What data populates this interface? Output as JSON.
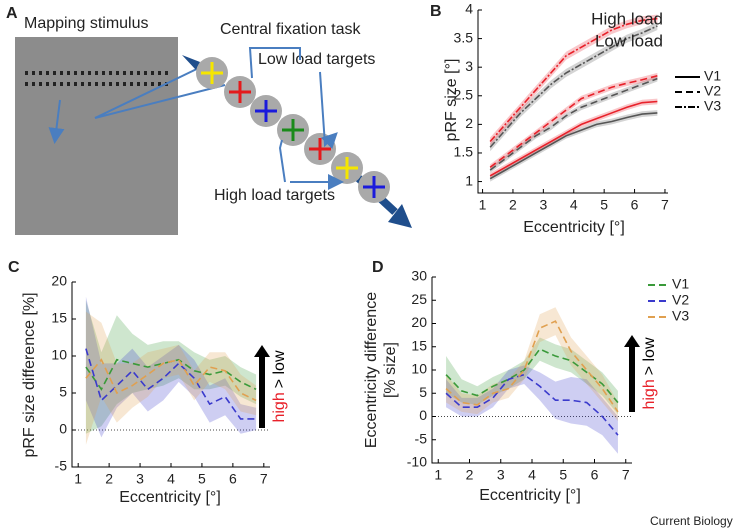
{
  "panel_a": {
    "letter": "A",
    "stimulus_label": "Mapping stimulus",
    "task_label": "Central fixation task",
    "low_label": "Low load targets",
    "high_label": "High load targets"
  },
  "footer": "Current Biology",
  "chart_data": [
    {
      "type": "line",
      "panel": "B",
      "xlabel": "Eccentricity [°]",
      "ylabel": "pRF size [°]",
      "x": [
        1.25,
        1.75,
        2.25,
        2.75,
        3.25,
        3.75,
        4.25,
        4.75,
        5.25,
        5.75,
        6.25,
        6.75
      ],
      "xlim": [
        0.85,
        7.1
      ],
      "ylim": [
        0.8,
        4
      ],
      "xticks": [
        1,
        2,
        3,
        4,
        5,
        6,
        7
      ],
      "yticks": [
        1,
        1.5,
        2,
        2.5,
        3,
        3.5,
        4
      ],
      "legend_colors": [
        {
          "name": "High load",
          "color": "#e8212a"
        },
        {
          "name": "Low load",
          "color": "#000000"
        }
      ],
      "legend_styles": [
        {
          "name": "V1",
          "dash": "solid"
        },
        {
          "name": "V2",
          "dash": "dashed"
        },
        {
          "name": "V3",
          "dash": "dash-dot"
        }
      ],
      "series": [
        {
          "color": "#555555",
          "dash": "solid",
          "values": [
            1.05,
            1.2,
            1.35,
            1.5,
            1.65,
            1.8,
            1.9,
            2.0,
            2.05,
            2.12,
            2.18,
            2.2
          ],
          "error": [
            0.05,
            0.05,
            0.05,
            0.05,
            0.05,
            0.05,
            0.05,
            0.05,
            0.05,
            0.05,
            0.05,
            0.05
          ]
        },
        {
          "color": "#e8212a",
          "dash": "solid",
          "values": [
            1.1,
            1.25,
            1.4,
            1.55,
            1.7,
            1.85,
            2.0,
            2.1,
            2.2,
            2.3,
            2.38,
            2.4
          ],
          "error": [
            0.05,
            0.05,
            0.05,
            0.05,
            0.05,
            0.05,
            0.05,
            0.05,
            0.05,
            0.05,
            0.05,
            0.05
          ]
        },
        {
          "color": "#555555",
          "dash": "dashed",
          "values": [
            1.2,
            1.4,
            1.6,
            1.8,
            1.95,
            2.15,
            2.3,
            2.4,
            2.5,
            2.6,
            2.7,
            2.8
          ],
          "error": [
            0.05,
            0.05,
            0.05,
            0.05,
            0.05,
            0.05,
            0.05,
            0.05,
            0.05,
            0.05,
            0.05,
            0.05
          ]
        },
        {
          "color": "#e8212a",
          "dash": "dashed",
          "values": [
            1.25,
            1.45,
            1.65,
            1.85,
            2.05,
            2.25,
            2.45,
            2.55,
            2.65,
            2.72,
            2.78,
            2.85
          ],
          "error": [
            0.05,
            0.05,
            0.05,
            0.05,
            0.05,
            0.05,
            0.05,
            0.05,
            0.05,
            0.05,
            0.05,
            0.05
          ]
        },
        {
          "color": "#555555",
          "dash": "dash-dot",
          "values": [
            1.6,
            1.9,
            2.2,
            2.45,
            2.7,
            2.9,
            3.05,
            3.2,
            3.35,
            3.5,
            3.6,
            3.72
          ],
          "error": [
            0.07,
            0.07,
            0.07,
            0.07,
            0.07,
            0.07,
            0.07,
            0.07,
            0.07,
            0.07,
            0.07,
            0.07
          ]
        },
        {
          "color": "#e8212a",
          "dash": "dash-dot",
          "values": [
            1.7,
            2.0,
            2.3,
            2.6,
            2.9,
            3.2,
            3.35,
            3.5,
            3.65,
            3.75,
            3.82,
            3.85
          ],
          "error": [
            0.07,
            0.07,
            0.07,
            0.07,
            0.07,
            0.07,
            0.07,
            0.07,
            0.07,
            0.07,
            0.07,
            0.07
          ]
        }
      ]
    },
    {
      "type": "line",
      "panel": "C",
      "xlabel": "Eccentricity [°]",
      "ylabel": "pRF size difference [%]",
      "annotation": [
        "high",
        "> low"
      ],
      "x": [
        1.25,
        1.75,
        2.25,
        2.75,
        3.25,
        3.75,
        4.25,
        4.75,
        5.25,
        5.75,
        6.25,
        6.75
      ],
      "xlim": [
        0.8,
        7.2
      ],
      "ylim": [
        -5,
        20
      ],
      "xticks": [
        1,
        2,
        3,
        4,
        5,
        6,
        7
      ],
      "yticks": [
        -5,
        0,
        5,
        10,
        15,
        20
      ],
      "series": [
        {
          "color": "#3a9a3a",
          "dash": "dashed",
          "values": [
            8.5,
            5.5,
            9.5,
            9,
            8.5,
            9,
            9.5,
            8,
            7.5,
            8,
            6.5,
            5.5
          ],
          "error": [
            9,
            5,
            6,
            4,
            3,
            3,
            2.5,
            2.5,
            2,
            2,
            2,
            2
          ]
        },
        {
          "color": "#3a3acc",
          "dash": "dashed",
          "values": [
            11,
            4,
            6,
            8,
            5.5,
            7,
            9,
            7,
            3.5,
            4.5,
            1.5,
            1.5
          ],
          "error": [
            7,
            5,
            3,
            3,
            3,
            3,
            2.5,
            2.5,
            2.5,
            2.5,
            2,
            1.5
          ]
        },
        {
          "color": "#e0a050",
          "dash": "dashed",
          "values": [
            7,
            9.5,
            5,
            6,
            7.5,
            9,
            9.5,
            6,
            8.5,
            8,
            5,
            4
          ],
          "error": [
            9,
            5,
            4,
            3,
            3,
            2,
            2,
            2,
            2,
            2.5,
            2.5,
            2
          ]
        }
      ]
    },
    {
      "type": "line",
      "panel": "D",
      "xlabel": "Eccentricity [°]",
      "ylabel": [
        "Eccentricity difference",
        "[% size]"
      ],
      "annotation": [
        "high",
        "> low"
      ],
      "x": [
        1.25,
        1.75,
        2.25,
        2.75,
        3.25,
        3.75,
        4.25,
        4.75,
        5.25,
        5.75,
        6.25,
        6.75
      ],
      "xlim": [
        0.8,
        7.2
      ],
      "ylim": [
        -10,
        30
      ],
      "xticks": [
        1,
        2,
        3,
        4,
        5,
        6,
        7
      ],
      "yticks": [
        -10,
        -5,
        0,
        5,
        10,
        15,
        20,
        25,
        30
      ],
      "series": [
        {
          "name": "V1",
          "color": "#3a9a3a",
          "dash": "dashed",
          "values": [
            9,
            5.5,
            4.5,
            6.5,
            8,
            10,
            14.5,
            13,
            12,
            9.5,
            7,
            3
          ],
          "error": [
            4,
            2.5,
            2,
            2,
            2,
            2,
            2.5,
            2.5,
            2.5,
            2.5,
            2.5,
            2.5
          ]
        },
        {
          "name": "V2",
          "color": "#3a3acc",
          "dash": "dashed",
          "values": [
            5,
            2,
            2,
            4,
            8,
            9,
            6.5,
            3.5,
            3.5,
            3,
            0,
            -4
          ],
          "error": [
            3,
            2,
            2,
            2,
            2,
            2,
            3,
            4,
            5,
            5,
            4,
            4
          ]
        },
        {
          "name": "V3",
          "color": "#e0a050",
          "dash": "dashed",
          "values": [
            6,
            3,
            2.5,
            5,
            6,
            10,
            19,
            20.5,
            14,
            10,
            6,
            1
          ],
          "error": [
            3,
            2,
            2,
            2,
            2,
            2,
            3,
            3,
            3,
            3,
            3,
            2
          ]
        }
      ]
    }
  ]
}
